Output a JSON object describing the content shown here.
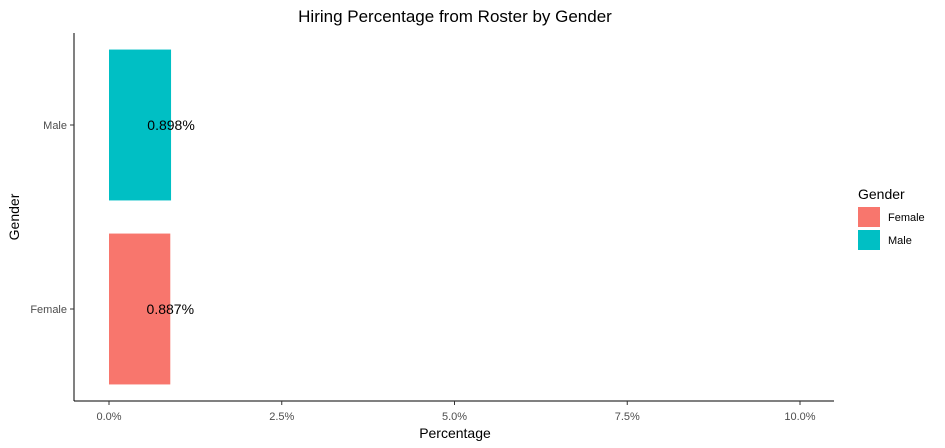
{
  "chart_data": {
    "type": "bar",
    "orientation": "horizontal",
    "title": "Hiring Percentage from Roster by Gender",
    "xlabel": "Percentage",
    "ylabel": "Gender",
    "categories": [
      "Female",
      "Male"
    ],
    "values": [
      0.887,
      0.898
    ],
    "data_labels": [
      "0.887%",
      "0.898%"
    ],
    "colors": [
      "#F8766D",
      "#00BFC4"
    ],
    "xlim": [
      0,
      10
    ],
    "x_ticks": [
      0,
      2.5,
      5,
      7.5,
      10
    ],
    "x_tick_labels": [
      "0.0%",
      "2.5%",
      "5.0%",
      "7.5%",
      "10.0%"
    ],
    "grid": false,
    "legend": {
      "title": "Gender",
      "position": "right",
      "entries": [
        {
          "label": "Female",
          "color": "#F8766D"
        },
        {
          "label": "Male",
          "color": "#00BFC4"
        }
      ]
    }
  }
}
